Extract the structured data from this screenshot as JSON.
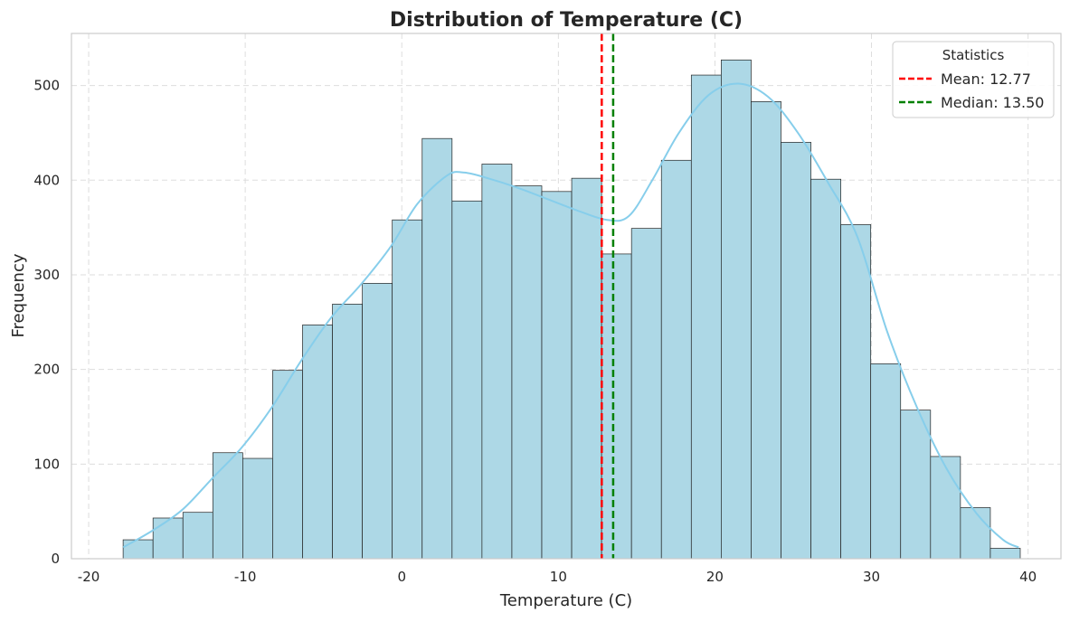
{
  "chart_data": {
    "type": "bar",
    "subtype": "histogram",
    "title": "Distribution of Temperature (C)",
    "xlabel": "Temperature (C)",
    "ylabel": "Frequency",
    "xlim": [
      -21.1,
      42.1
    ],
    "ylim": [
      0,
      555
    ],
    "xticks": [
      -20,
      -10,
      0,
      10,
      20,
      30,
      40
    ],
    "yticks": [
      0,
      100,
      200,
      300,
      400,
      500
    ],
    "bin_start": -17.8,
    "bin_width": 1.91,
    "values": [
      20,
      43,
      49,
      112,
      106,
      199,
      247,
      269,
      291,
      358,
      444,
      378,
      417,
      394,
      388,
      402,
      322,
      349,
      421,
      511,
      527,
      483,
      440,
      401,
      353,
      206,
      157,
      108,
      54,
      11
    ],
    "kde": {
      "x": [
        -17.8,
        -15.9,
        -14.0,
        -12.1,
        -10.2,
        -8.3,
        -6.4,
        -4.5,
        -2.6,
        -0.7,
        1.0,
        2.9,
        4.0,
        5.5,
        7.4,
        9.3,
        11.2,
        13.1,
        14.5,
        16.0,
        17.7,
        19.6,
        21.5,
        23.4,
        25.3,
        27.2,
        29.1,
        31.0,
        32.9,
        34.8,
        36.7,
        38.4,
        39.4
      ],
      "y": [
        12,
        30,
        52,
        85,
        118,
        160,
        210,
        255,
        290,
        330,
        375,
        405,
        408,
        402,
        392,
        380,
        368,
        358,
        362,
        400,
        450,
        490,
        502,
        488,
        450,
        398,
        340,
        240,
        160,
        95,
        48,
        20,
        12
      ],
      "color": "#87ceeb"
    },
    "reference_lines": [
      {
        "label": "Mean: 12.77",
        "x": 12.77,
        "color": "#ff0000",
        "style": "dashed"
      },
      {
        "label": "Median: 13.50",
        "x": 13.5,
        "color": "#008000",
        "style": "dashed"
      }
    ],
    "bar_color": "#add8e6",
    "legend": {
      "title": "Statistics",
      "position": "top-right"
    },
    "grid": true
  }
}
